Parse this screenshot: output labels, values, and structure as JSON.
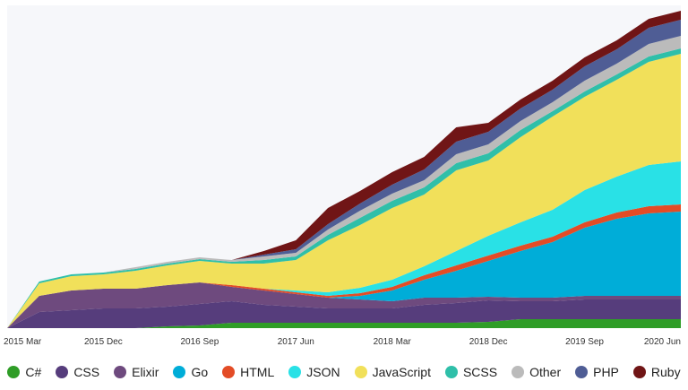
{
  "chart_data": {
    "type": "area",
    "stacked": true,
    "title": "",
    "xlabel": "",
    "ylabel": "",
    "x_ticks": [
      "2015 Mar",
      "2015 Dec",
      "2016 Sep",
      "2017 Jun",
      "2018 Mar",
      "2018 Dec",
      "2019 Sep",
      "2020 Jun"
    ],
    "x": [
      "2015 Mar",
      "2015 Jun",
      "2015 Sep",
      "2015 Dec",
      "2016 Mar",
      "2016 Jun",
      "2016 Sep",
      "2016 Dec",
      "2017 Mar",
      "2017 Jun",
      "2017 Sep",
      "2017 Dec",
      "2018 Mar",
      "2018 Jun",
      "2018 Sep",
      "2018 Dec",
      "2019 Mar",
      "2019 Jun",
      "2019 Sep",
      "2019 Dec",
      "2020 Mar",
      "2020 Jun"
    ],
    "ylim": [
      0,
      360
    ],
    "series": [
      {
        "name": "C#",
        "color": "#2f9d27",
        "values": [
          0,
          0,
          0,
          0,
          0,
          2,
          3,
          6,
          6,
          6,
          6,
          6,
          6,
          6,
          6,
          7,
          10,
          10,
          10,
          10,
          10,
          10
        ]
      },
      {
        "name": "CSS",
        "color": "#563d7c",
        "values": [
          0,
          18,
          20,
          22,
          22,
          22,
          24,
          24,
          20,
          18,
          16,
          16,
          16,
          20,
          22,
          24,
          20,
          20,
          22,
          22,
          22,
          22
        ]
      },
      {
        "name": "Elixir",
        "color": "#6e4a7e",
        "values": [
          0,
          18,
          22,
          22,
          22,
          24,
          24,
          16,
          16,
          14,
          12,
          10,
          8,
          8,
          6,
          4,
          4,
          4,
          4,
          4,
          4,
          4
        ]
      },
      {
        "name": "Go",
        "color": "#00add8",
        "values": [
          0,
          0,
          0,
          0,
          0,
          0,
          0,
          0,
          0,
          0,
          0,
          4,
          12,
          20,
          30,
          40,
          52,
          62,
          76,
          86,
          92,
          94
        ]
      },
      {
        "name": "HTML",
        "color": "#e34c26",
        "values": [
          0,
          0,
          0,
          0,
          0,
          0,
          0,
          2,
          2,
          2,
          2,
          3,
          4,
          5,
          6,
          6,
          6,
          6,
          6,
          7,
          8,
          8
        ]
      },
      {
        "name": "JSON",
        "color": "#29e1e6",
        "values": [
          0,
          0,
          0,
          0,
          0,
          0,
          0,
          0,
          0,
          2,
          4,
          6,
          8,
          10,
          16,
          22,
          26,
          30,
          36,
          40,
          46,
          48
        ]
      },
      {
        "name": "JavaScript",
        "color": "#f1e05a",
        "values": [
          0,
          14,
          16,
          16,
          20,
          22,
          24,
          24,
          28,
          34,
          58,
          70,
          80,
          80,
          90,
          84,
          95,
          104,
          104,
          108,
          115,
          120
        ]
      },
      {
        "name": "SCSS",
        "color": "#2fbfa9",
        "values": [
          0,
          2,
          2,
          2,
          2,
          2,
          2,
          2,
          4,
          4,
          6,
          8,
          8,
          8,
          8,
          8,
          8,
          6,
          6,
          6,
          6,
          6
        ]
      },
      {
        "name": "Other",
        "color": "#bbbbbb",
        "values": [
          0,
          0,
          0,
          0,
          2,
          2,
          2,
          2,
          4,
          4,
          6,
          8,
          8,
          8,
          10,
          10,
          10,
          10,
          12,
          12,
          14,
          14
        ]
      },
      {
        "name": "PHP",
        "color": "#4f5d95",
        "values": [
          0,
          0,
          0,
          0,
          0,
          0,
          0,
          0,
          2,
          4,
          6,
          8,
          10,
          12,
          14,
          14,
          14,
          14,
          16,
          16,
          18,
          18
        ]
      },
      {
        "name": "Ruby",
        "color": "#701516",
        "values": [
          0,
          0,
          0,
          0,
          0,
          0,
          0,
          0,
          4,
          10,
          18,
          14,
          14,
          14,
          16,
          10,
          10,
          10,
          10,
          10,
          10,
          10
        ]
      }
    ]
  }
}
